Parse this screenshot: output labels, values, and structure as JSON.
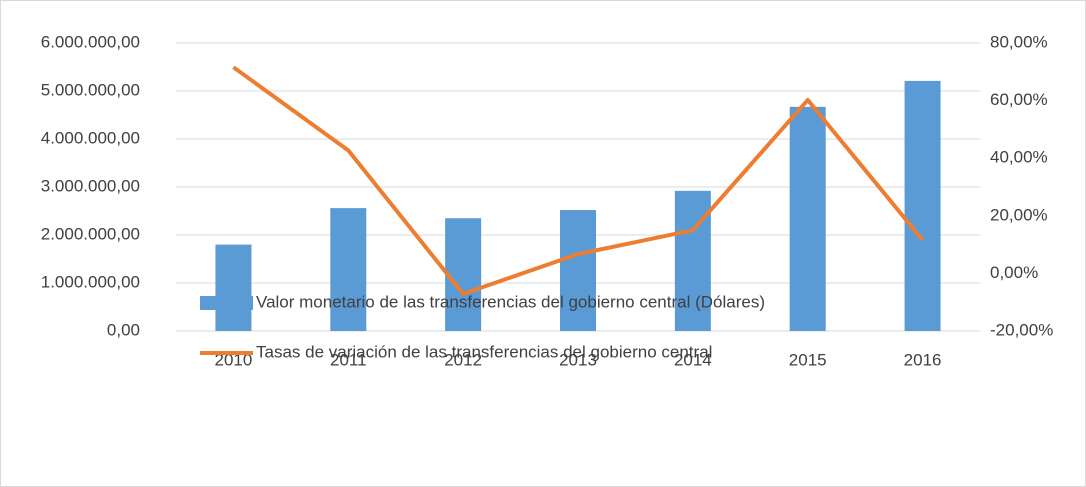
{
  "chart_data": {
    "type": "bar",
    "categories": [
      "2010",
      "2011",
      "2012",
      "2013",
      "2014",
      "2015",
      "2016"
    ],
    "series": [
      {
        "name": "Valor monetario de las transferencias del gobierno central (Dólares)",
        "type": "bar",
        "color": "#5b9bd5",
        "values": [
          1800000,
          2560000,
          2350000,
          2520000,
          2920000,
          4670000,
          5210000
        ]
      },
      {
        "name": "Tasas de variación de las transferencias del gobierno central",
        "type": "line",
        "axis": "y2",
        "color": "#ed7d31",
        "values": [
          71.6,
          42.7,
          -7.1,
          6.7,
          15.0,
          60.2,
          11.6
        ]
      }
    ],
    "ylim": [
      0,
      6000000
    ],
    "yticks": [
      {
        "value": 0,
        "label": "0,00"
      },
      {
        "value": 1000000,
        "label": "1.000.000,00"
      },
      {
        "value": 2000000,
        "label": "2.000.000,00"
      },
      {
        "value": 3000000,
        "label": "3.000.000,00"
      },
      {
        "value": 4000000,
        "label": "4.000.000,00"
      },
      {
        "value": 5000000,
        "label": "5.000.000,00"
      },
      {
        "value": 6000000,
        "label": "6.000.000,00"
      }
    ],
    "y2lim": [
      -20,
      80
    ],
    "y2ticks": [
      {
        "value": -20,
        "label": "-20,00%"
      },
      {
        "value": 0,
        "label": "0,00%"
      },
      {
        "value": 20,
        "label": "20,00%"
      },
      {
        "value": 40,
        "label": "40,00%"
      },
      {
        "value": 60,
        "label": "60,00%"
      },
      {
        "value": 80,
        "label": "80,00%"
      }
    ],
    "grid": true,
    "legend": "bottom"
  }
}
